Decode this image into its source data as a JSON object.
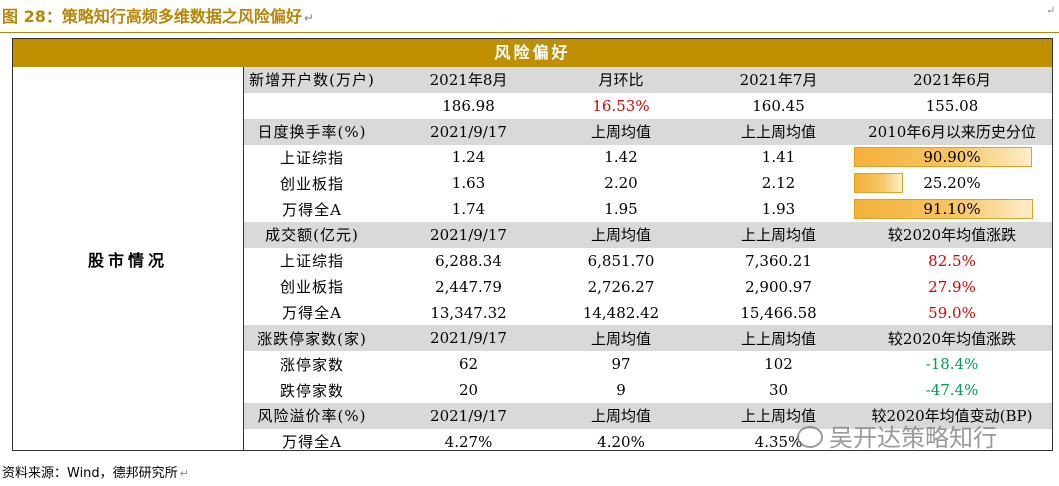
{
  "figure": {
    "title": "图 28：策略知行高频多维数据之风险偏好",
    "para_mark": "↵"
  },
  "table": {
    "banner": "风险偏好",
    "section_label": "股市情况",
    "sections": [
      {
        "header": [
          "新增开户数(万户)",
          "2021年8月",
          "月环比",
          "2021年7月",
          "2021年6月"
        ],
        "rows": [
          {
            "label": "",
            "v1": "186.98",
            "v2": "16.53%",
            "v2_color": "#e00000",
            "v3": "160.45",
            "v4": "155.08"
          }
        ]
      },
      {
        "header": [
          "日度换手率(%)",
          "2021/9/17",
          "上周均值",
          "上上周均值",
          "2010年6月以来历史分位"
        ],
        "rows": [
          {
            "label": "上证综指",
            "v1": "1.24",
            "v2": "1.42",
            "v3": "1.41",
            "v4": "90.90%",
            "pct": 0.909
          },
          {
            "label": "创业板指",
            "v1": "1.63",
            "v2": "2.20",
            "v3": "2.12",
            "v4": "25.20%",
            "pct": 0.252
          },
          {
            "label": "万得全A",
            "v1": "1.74",
            "v2": "1.95",
            "v3": "1.93",
            "v4": "91.10%",
            "pct": 0.911
          }
        ]
      },
      {
        "header": [
          "成交额(亿元)",
          "2021/9/17",
          "上周均值",
          "上上周均值",
          "较2020年均值涨跌"
        ],
        "rows": [
          {
            "label": "上证综指",
            "v1": "6,288.34",
            "v2": "6,851.70",
            "v3": "7,360.21",
            "v4": "82.5%",
            "v4_color": "#e00000"
          },
          {
            "label": "创业板指",
            "v1": "2,447.79",
            "v2": "2,726.27",
            "v3": "2,900.97",
            "v4": "27.9%",
            "v4_color": "#e00000"
          },
          {
            "label": "万得全A",
            "v1": "13,347.32",
            "v2": "14,482.42",
            "v3": "15,466.58",
            "v4": "59.0%",
            "v4_color": "#e00000"
          }
        ]
      },
      {
        "header": [
          "涨跌停家数(家)",
          "2021/9/17",
          "上周均值",
          "上上周均值",
          "较2020年均值涨跌"
        ],
        "rows": [
          {
            "label": "涨停家数",
            "v1": "62",
            "v2": "97",
            "v3": "102",
            "v4": "-18.4%",
            "v4_color": "#00a050"
          },
          {
            "label": "跌停家数",
            "v1": "20",
            "v2": "9",
            "v3": "30",
            "v4": "-47.4%",
            "v4_color": "#00a050"
          }
        ]
      },
      {
        "header": [
          "风险溢价率(%)",
          "2021/9/17",
          "上周均值",
          "上上周均值",
          "较2020年均值变动(BP)"
        ],
        "rows": [
          {
            "label": "万得全A",
            "v1": "4.27%",
            "v2": "4.20%",
            "v3": "4.35%",
            "v4": ""
          }
        ]
      }
    ]
  },
  "watermark": {
    "text": "吴开达策略知行",
    "icon": "wechat-icon"
  },
  "source": {
    "text": "资料来源：Wind，德邦研究所"
  }
}
